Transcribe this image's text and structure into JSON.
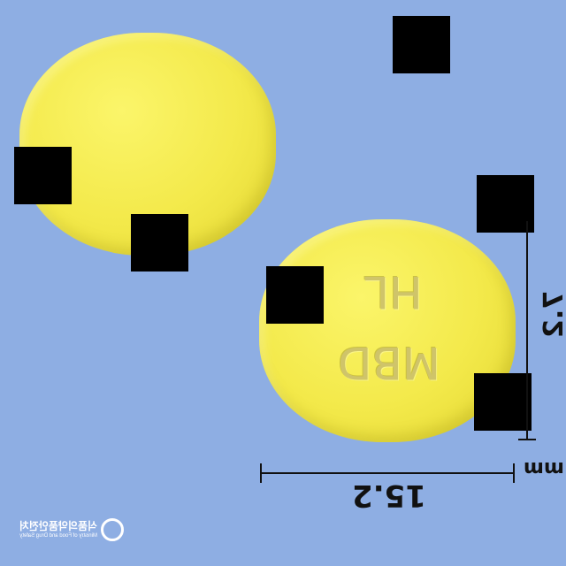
{
  "scene": {
    "background_color": "#8eaee3",
    "pill_color": "#f3e94a",
    "redaction_color": "#000000"
  },
  "imprint": {
    "line1": "HL",
    "line2": "MBD"
  },
  "dimensions": {
    "width_value": "15.2",
    "height_value": "7.2",
    "unit": "mm"
  },
  "logo": {
    "korean_text": "식품의약품안전처",
    "english_text": "Ministry of Food and Drug Safety"
  }
}
